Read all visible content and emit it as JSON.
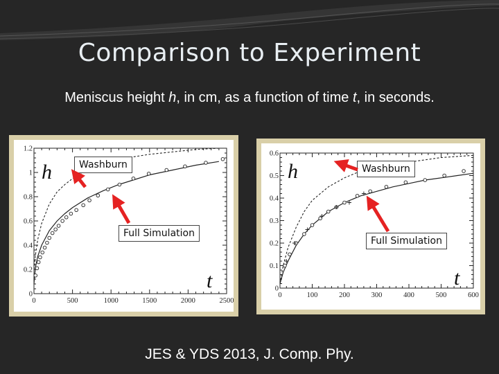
{
  "slide": {
    "title": "Comparison to Experiment",
    "subtitle_prefix": "Meniscus height ",
    "subtitle_h": "h",
    "subtitle_mid": ", in cm, as a function of time ",
    "subtitle_t": "t",
    "subtitle_suffix": ", in seconds.",
    "footer": "JES & YDS 2013, J. Comp. Phy."
  },
  "colors": {
    "background": "#262626",
    "panel_border": "#d9cfa8",
    "arrow": "#e52222"
  },
  "chart_data": [
    {
      "type": "line",
      "title": "",
      "xlabel": "t",
      "ylabel": "h",
      "xlim": [
        0,
        2500
      ],
      "ylim": [
        0,
        1.2
      ],
      "x_ticks": [
        0,
        500,
        1000,
        1500,
        2000,
        2500
      ],
      "x_tick_labels": [
        "0",
        "500",
        "1000",
        "1500",
        "2000",
        "2500"
      ],
      "y_ticks": [
        0,
        0.2,
        0.4,
        0.6,
        0.8,
        1,
        1.2
      ],
      "y_tick_labels": [
        "0",
        "0.2",
        "0.4",
        "0.6",
        "0.8",
        "1",
        "1.2"
      ],
      "series": [
        {
          "name": "Washburn",
          "style": "dashed",
          "x": [
            0,
            20,
            50,
            100,
            200,
            300,
            400,
            500,
            700,
            900,
            1100,
            1300,
            1500,
            1800,
            2100,
            2400
          ],
          "y": [
            0.2,
            0.32,
            0.45,
            0.58,
            0.74,
            0.84,
            0.9,
            0.95,
            1.02,
            1.07,
            1.1,
            1.13,
            1.15,
            1.17,
            1.19,
            1.2
          ]
        },
        {
          "name": "Full Simulation",
          "style": "solid",
          "x": [
            0,
            20,
            50,
            100,
            200,
            300,
            400,
            500,
            700,
            900,
            1100,
            1300,
            1500,
            1800,
            2100,
            2400
          ],
          "y": [
            0.08,
            0.22,
            0.31,
            0.4,
            0.52,
            0.6,
            0.66,
            0.71,
            0.79,
            0.85,
            0.9,
            0.94,
            0.98,
            1.02,
            1.06,
            1.09
          ]
        },
        {
          "name": "",
          "style": "circles",
          "x": [
            20,
            40,
            60,
            80,
            110,
            140,
            170,
            200,
            240,
            280,
            320,
            370,
            420,
            480,
            550,
            640,
            720,
            830,
            960,
            1110,
            1290,
            1490,
            1720,
            1960,
            2230,
            2450
          ],
          "y": [
            0.15,
            0.21,
            0.26,
            0.3,
            0.34,
            0.38,
            0.42,
            0.46,
            0.5,
            0.53,
            0.56,
            0.6,
            0.63,
            0.66,
            0.69,
            0.73,
            0.77,
            0.81,
            0.86,
            0.9,
            0.95,
            0.99,
            1.02,
            1.05,
            1.08,
            1.11
          ]
        }
      ]
    },
    {
      "type": "line",
      "title": "",
      "xlabel": "t",
      "ylabel": "h",
      "xlim": [
        0,
        600
      ],
      "ylim": [
        0,
        0.6
      ],
      "x_ticks": [
        0,
        100,
        200,
        300,
        400,
        500,
        600
      ],
      "x_tick_labels": [
        "0",
        "100",
        "200",
        "300",
        "400",
        "500",
        "600"
      ],
      "y_ticks": [
        0,
        0.1,
        0.2,
        0.3,
        0.4,
        0.5,
        0.6
      ],
      "y_tick_labels": [
        "0",
        "0.1",
        "0.2",
        "0.3",
        "0.4",
        "0.5",
        "0.6"
      ],
      "series": [
        {
          "name": "Washburn",
          "style": "dashed",
          "x": [
            0,
            10,
            25,
            50,
            75,
            100,
            150,
            200,
            250,
            300,
            350,
            400,
            450,
            500,
            550,
            600
          ],
          "y": [
            0.02,
            0.1,
            0.18,
            0.27,
            0.34,
            0.39,
            0.45,
            0.49,
            0.52,
            0.54,
            0.55,
            0.56,
            0.57,
            0.58,
            0.585,
            0.59
          ]
        },
        {
          "name": "Full Simulation",
          "style": "solid",
          "x": [
            0,
            10,
            25,
            50,
            75,
            100,
            150,
            200,
            250,
            300,
            350,
            400,
            450,
            500,
            550,
            600
          ],
          "y": [
            0.02,
            0.07,
            0.12,
            0.19,
            0.24,
            0.28,
            0.34,
            0.38,
            0.41,
            0.43,
            0.45,
            0.465,
            0.48,
            0.49,
            0.5,
            0.51
          ]
        },
        {
          "name": "",
          "style": "circles",
          "x": [
            15,
            30,
            50,
            75,
            100,
            125,
            150,
            175,
            200,
            240,
            280,
            330,
            390,
            450,
            510,
            570
          ],
          "y": [
            0.1,
            0.15,
            0.2,
            0.24,
            0.28,
            0.31,
            0.34,
            0.36,
            0.38,
            0.41,
            0.43,
            0.45,
            0.47,
            0.48,
            0.5,
            0.52
          ]
        },
        {
          "name": "",
          "style": "plus",
          "x": [
            20,
            45,
            85,
            130,
            175,
            215,
            260
          ],
          "y": [
            0.12,
            0.2,
            0.26,
            0.32,
            0.36,
            0.38,
            0.42
          ]
        }
      ]
    }
  ]
}
